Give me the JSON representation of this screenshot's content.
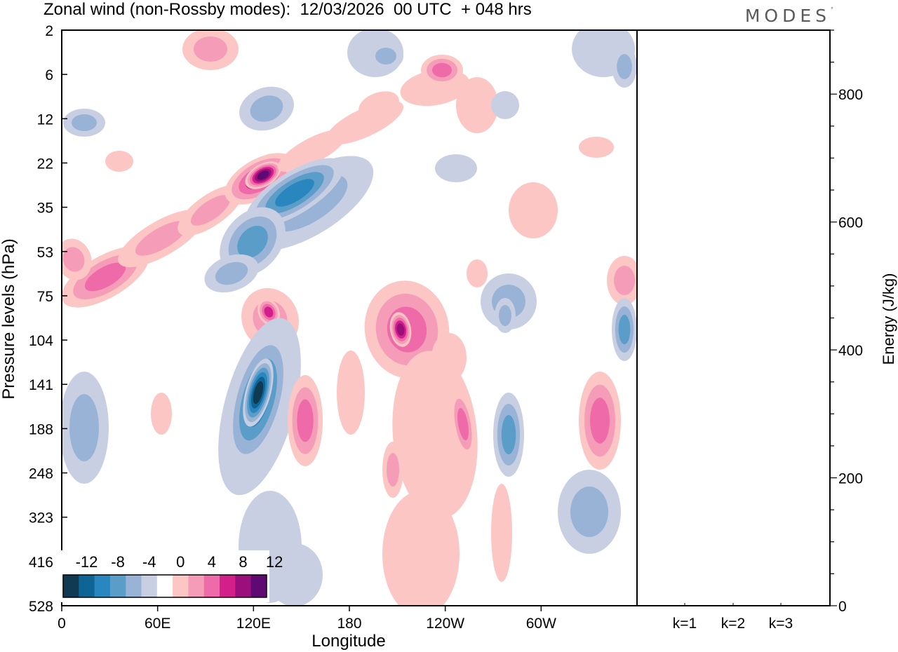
{
  "title": "Zonal wind (non-Rossby modes):  12/03/2026  00 UTC  + 048 hrs",
  "brand": "MODES",
  "brand_mark": "°",
  "chart_data": [
    {
      "type": "heatmap",
      "title": "Zonal wind (non-Rossby modes)",
      "xlabel": "Longitude",
      "ylabel": "Pressure levels (hPa)",
      "x_ticks": [
        "0",
        "60E",
        "120E",
        "180",
        "120W",
        "60W"
      ],
      "x_tick_values": [
        0,
        60,
        120,
        180,
        240,
        300
      ],
      "xlim": [
        0,
        360
      ],
      "y_ticks": [
        "2",
        "6",
        "12",
        "22",
        "35",
        "53",
        "75",
        "104",
        "141",
        "188",
        "248",
        "323",
        "416",
        "528"
      ],
      "colorbar": {
        "labels": [
          "-12",
          "-8",
          "-4",
          "0",
          "4",
          "8",
          "12"
        ],
        "colors": [
          "#0f3a52",
          "#0e6595",
          "#2a86be",
          "#5a9dc9",
          "#98b3d6",
          "#c9cfe3",
          "#ffffff",
          "#fbc6c3",
          "#f59cb8",
          "#ee6aa8",
          "#d31f8a",
          "#9b0f7c",
          "#5f0a72"
        ]
      },
      "features": [
        {
          "name": "upper positive band",
          "lon": [
            5,
            150
          ],
          "level": [
            75,
            22
          ],
          "max": 12
        },
        {
          "name": "upper negative band",
          "lon": [
            100,
            195
          ],
          "level": [
            75,
            22
          ],
          "min": -8
        },
        {
          "name": "lower negative jet",
          "lon": [
            110,
            145
          ],
          "level": [
            248,
            104
          ],
          "min": -12
        },
        {
          "name": "positive center near 150W",
          "lon": [
            190,
            225
          ],
          "level": [
            141,
            75
          ],
          "max": 8
        },
        {
          "name": "positive center near 140W (upper)",
          "lon": [
            225,
            245
          ],
          "level": [
            12,
            2
          ],
          "max": 8
        }
      ]
    },
    {
      "type": "bar",
      "categories": [
        "k=1",
        "k=2",
        "k=3"
      ],
      "values": [
        1,
        1,
        1
      ],
      "ylabel": "Energy (J/kg)",
      "y_ticks": [
        "0",
        "200",
        "400",
        "600",
        "800"
      ],
      "ylim": [
        0,
        900
      ]
    }
  ]
}
